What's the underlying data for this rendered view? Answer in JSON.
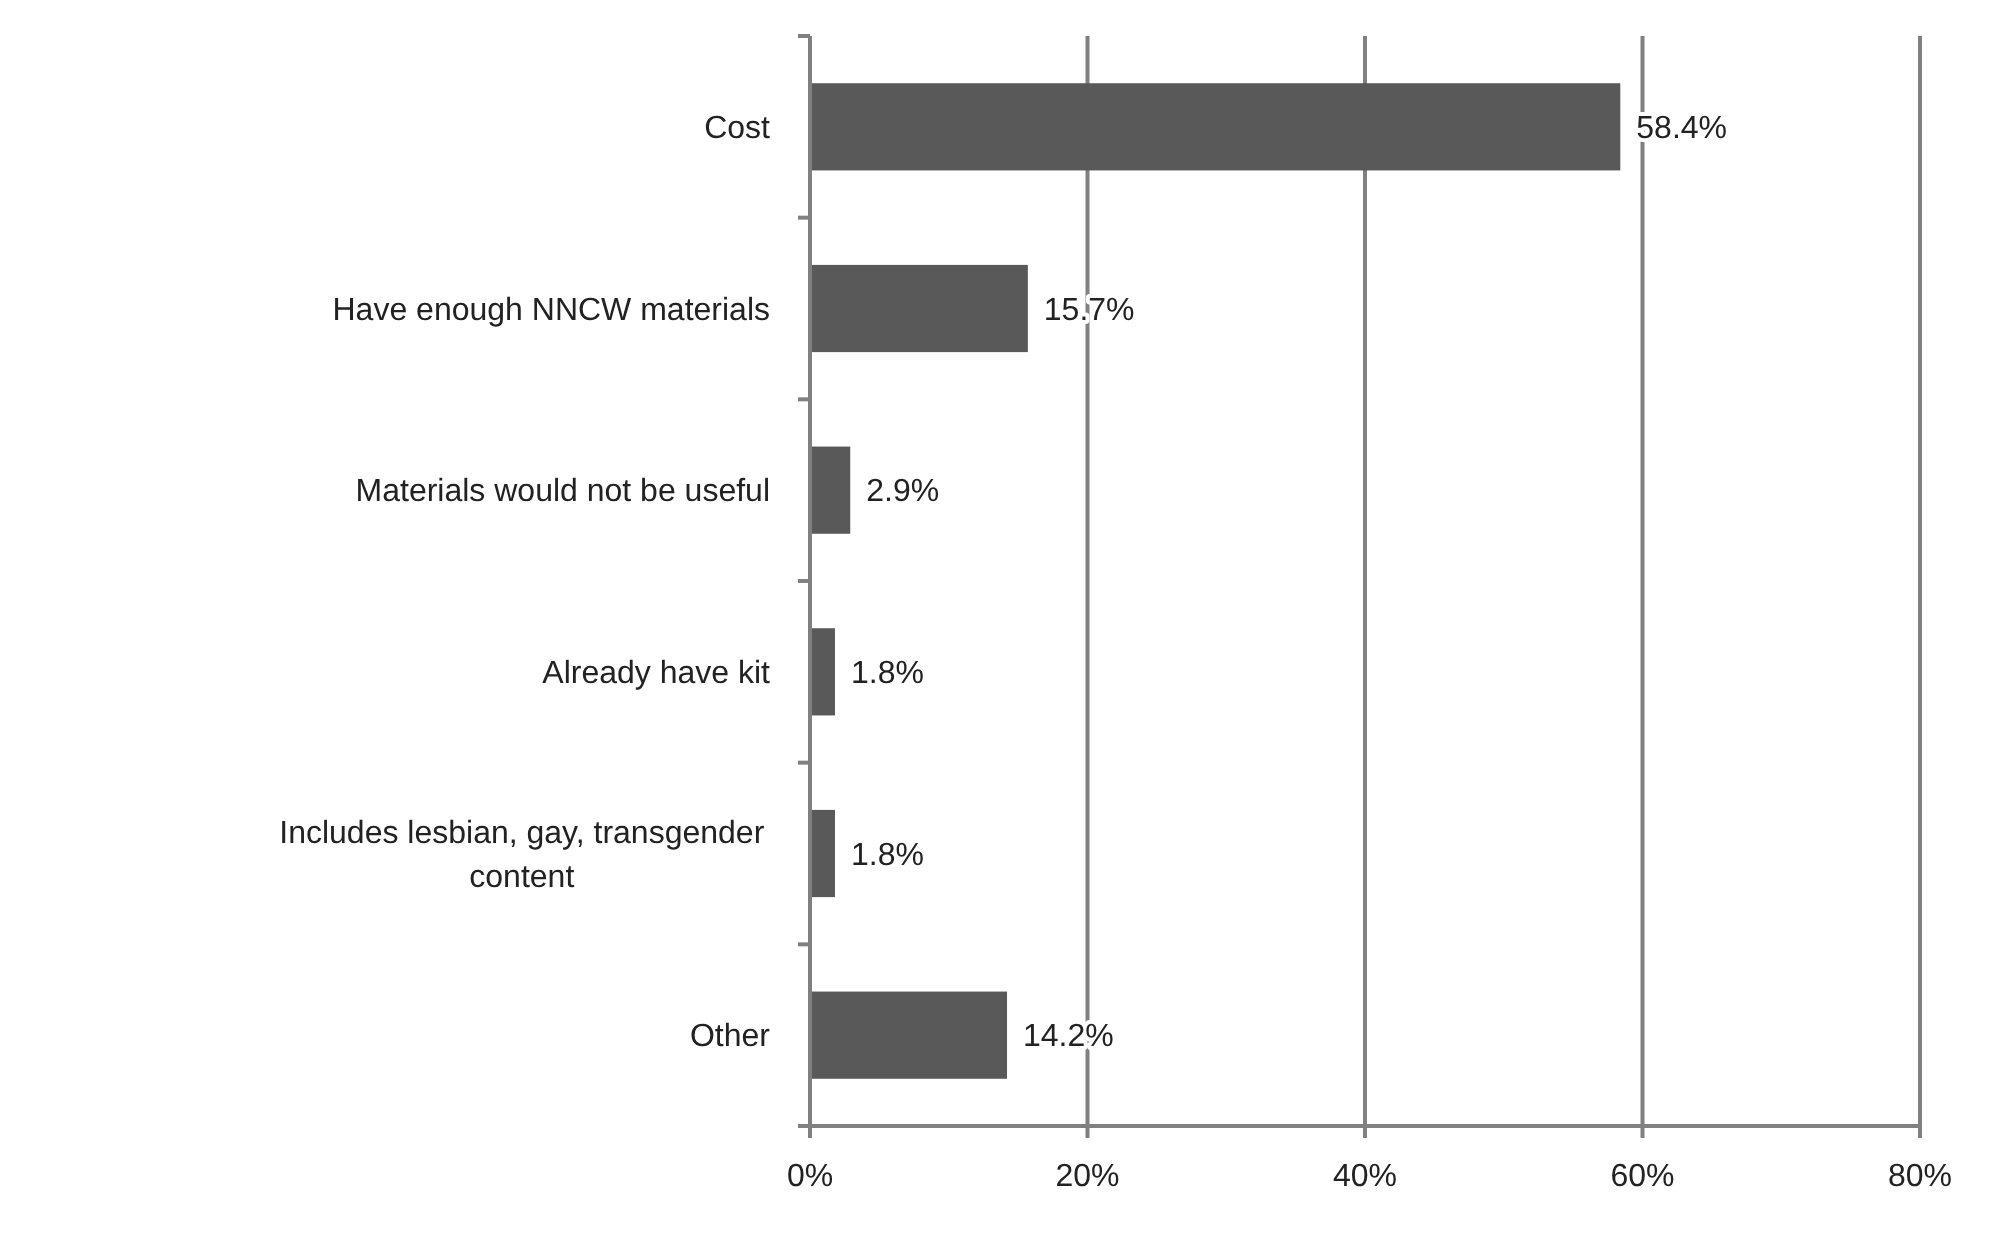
{
  "chart_data": {
    "type": "bar",
    "orientation": "horizontal",
    "categories": [
      "Cost",
      "Have enough NNCW  materials",
      "Materials would not be useful",
      "Already have kit",
      "Includes lesbian, gay, transgender content",
      "Other"
    ],
    "values": [
      58.4,
      15.7,
      2.9,
      1.8,
      1.8,
      14.2
    ],
    "value_labels": [
      "58.4%",
      "15.7%",
      "2.9%",
      "1.8%",
      "1.8%",
      "14.2%"
    ],
    "color": "#595959",
    "xlim": [
      0,
      80
    ],
    "xticks": [
      {
        "value": 0,
        "label": "0%"
      },
      {
        "value": 20,
        "label": "20%"
      },
      {
        "value": 40,
        "label": "40%"
      },
      {
        "value": 60,
        "label": "60%"
      },
      {
        "value": 80,
        "label": "80%"
      }
    ],
    "grid": "x"
  }
}
